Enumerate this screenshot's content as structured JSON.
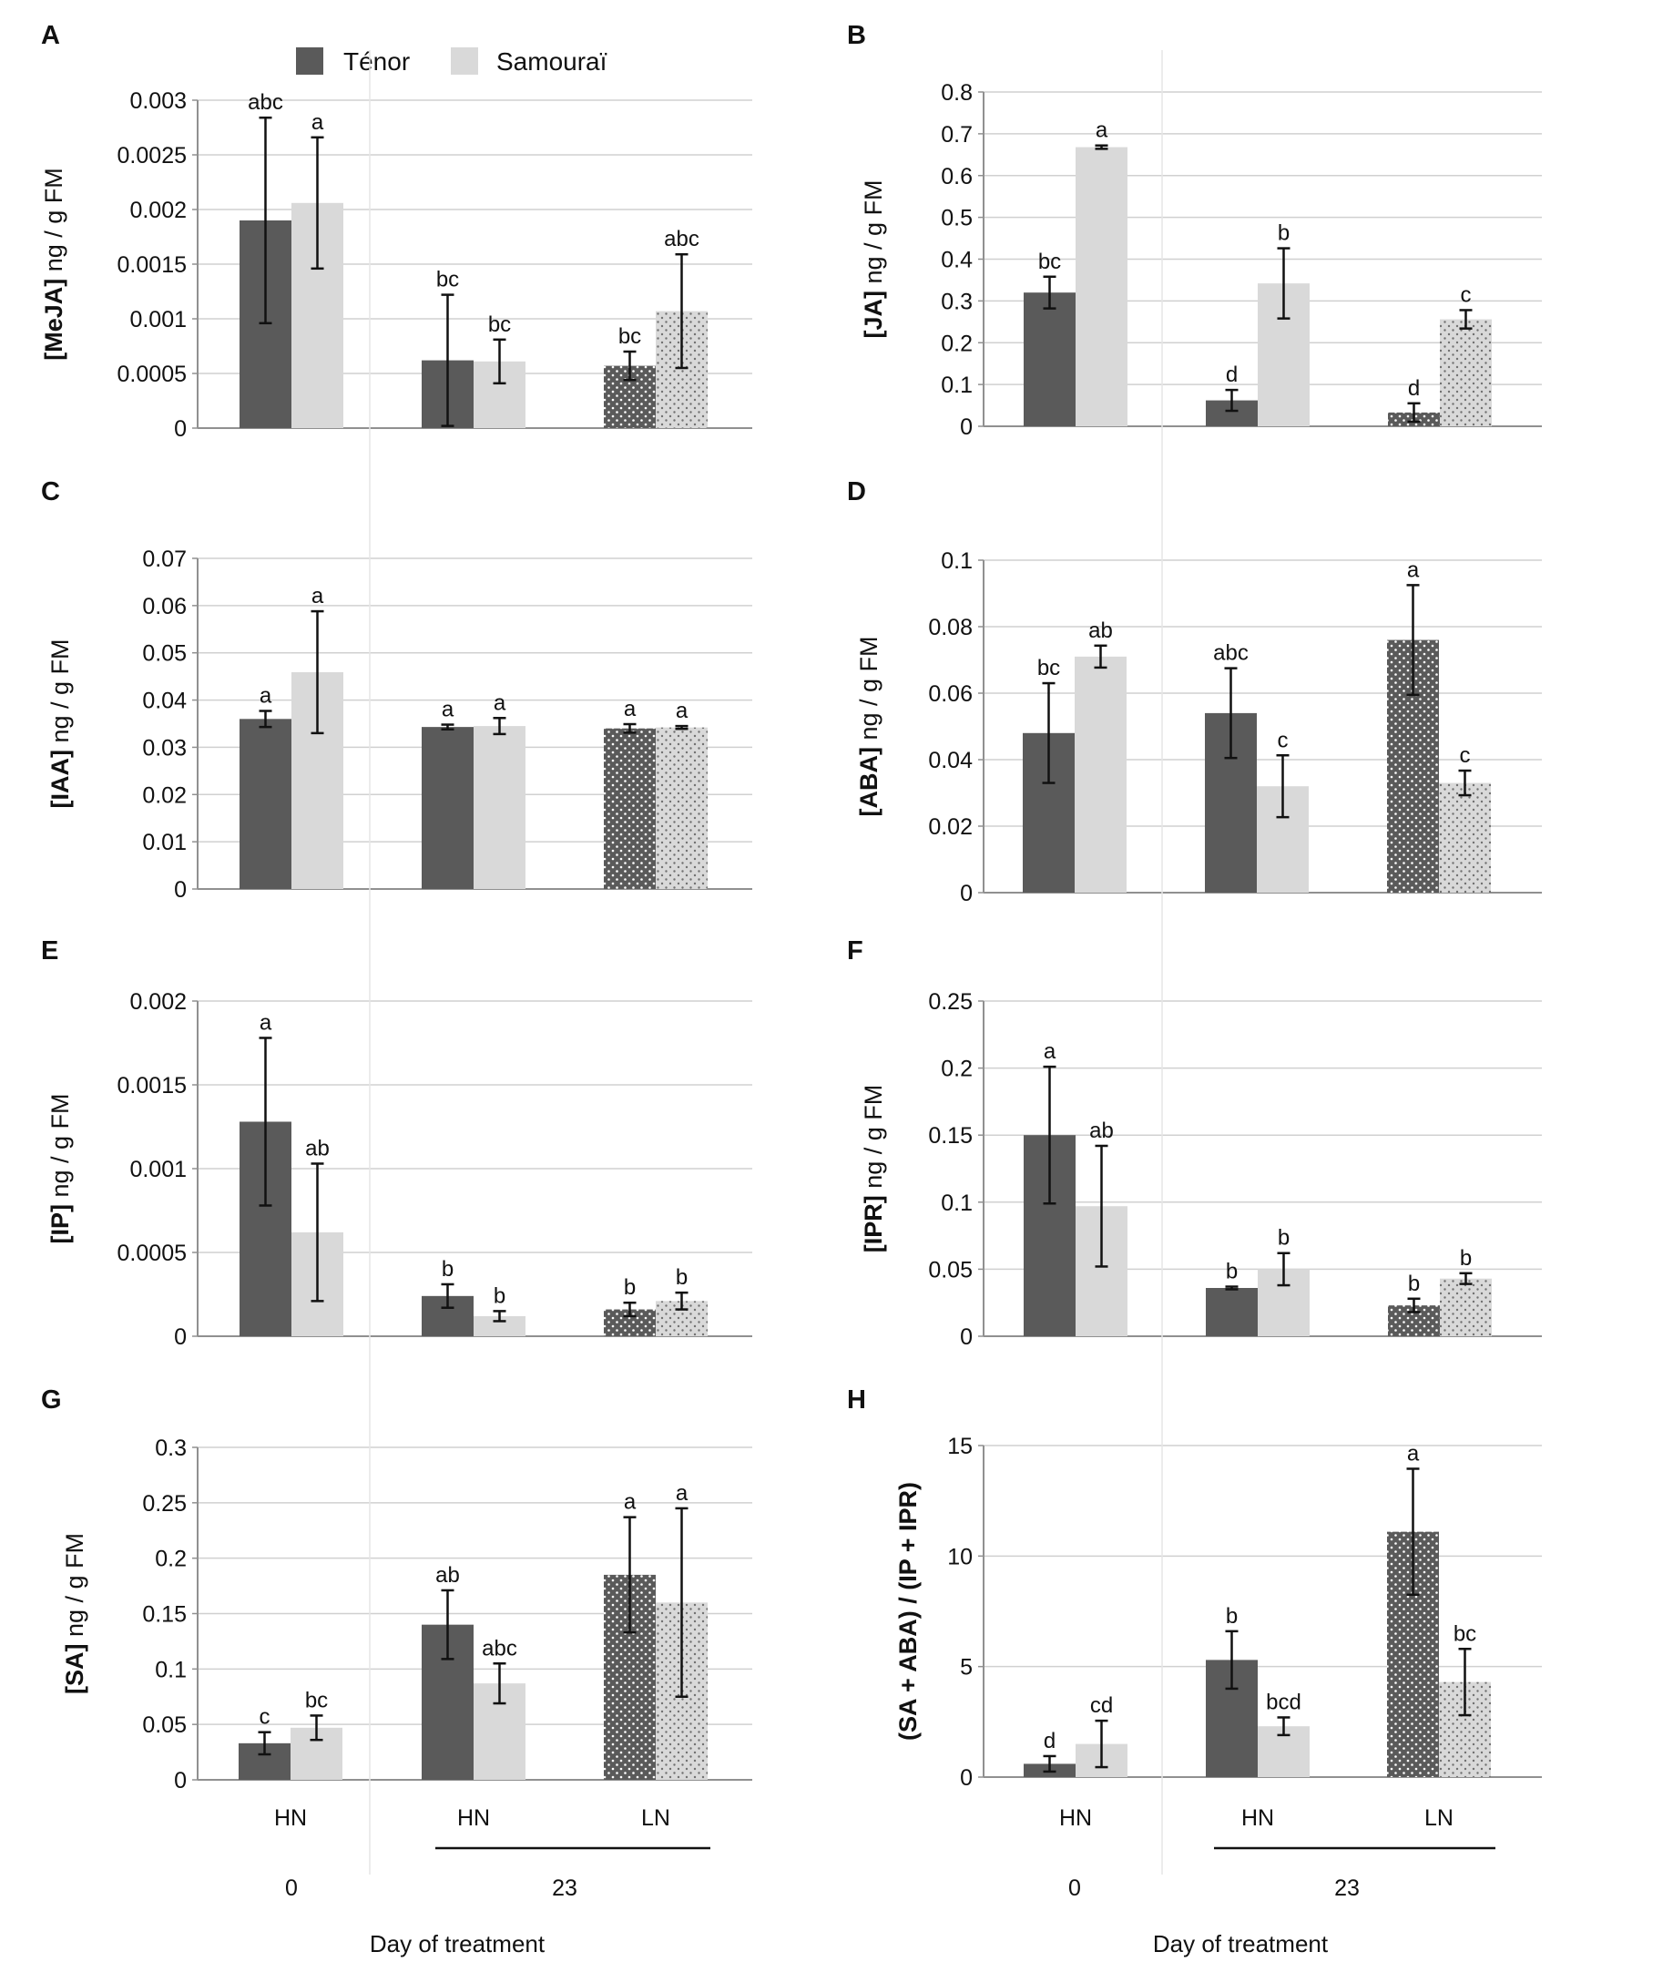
{
  "legend": {
    "items": [
      {
        "name": "Ténor",
        "color": "#5a5a5a"
      },
      {
        "name": "Samouraï",
        "color": "#d9d9d9"
      }
    ]
  },
  "axis_x": {
    "categories": [
      "HN",
      "HN",
      "LN"
    ],
    "days": [
      "0",
      "23"
    ],
    "title": "Day of treatment"
  },
  "colors": {
    "tenor": "#5a5a5a",
    "samourai": "#d9d9d9",
    "grid": "#d0d0d0",
    "axis": "#909090"
  },
  "chart_data": [
    {
      "panel": "A",
      "type": "bar",
      "ylabel": "[MeJA] ng / g FM",
      "ylim": [
        0,
        0.003
      ],
      "yticks": [
        "0",
        "0.0005",
        "0.001",
        "0.0015",
        "0.002",
        "0.0025",
        "0.003"
      ],
      "categories": [
        "0 HN",
        "23 HN",
        "23 LN"
      ],
      "series": [
        {
          "name": "Ténor",
          "values": [
            0.0019,
            0.00062,
            0.00057
          ],
          "errors": [
            0.00094,
            0.0006,
            0.00013
          ],
          "labels": [
            "abc",
            "bc",
            "bc"
          ]
        },
        {
          "name": "Samouraï",
          "values": [
            0.00206,
            0.00061,
            0.00107
          ],
          "errors": [
            0.0006,
            0.0002,
            0.00052
          ],
          "labels": [
            "a",
            "bc",
            "abc"
          ]
        }
      ]
    },
    {
      "panel": "B",
      "type": "bar",
      "ylabel": "[JA] ng / g FM",
      "ylim": [
        0,
        0.8
      ],
      "yticks": [
        "0",
        "0.1",
        "0.2",
        "0.3",
        "0.4",
        "0.5",
        "0.6",
        "0.7",
        "0.8"
      ],
      "categories": [
        "0 HN",
        "23 HN",
        "23 LN"
      ],
      "series": [
        {
          "name": "Ténor",
          "values": [
            0.32,
            0.062,
            0.033
          ],
          "errors": [
            0.038,
            0.025,
            0.022
          ],
          "labels": [
            "bc",
            "d",
            "d"
          ]
        },
        {
          "name": "Samouraï",
          "values": [
            0.668,
            0.342,
            0.256
          ],
          "errors": [
            0.004,
            0.084,
            0.022
          ],
          "labels": [
            "a",
            "b",
            "c"
          ]
        }
      ]
    },
    {
      "panel": "C",
      "type": "bar",
      "ylabel": "[IAA] ng / g FM",
      "ylim": [
        0,
        0.07
      ],
      "yticks": [
        "0",
        "0.01",
        "0.02",
        "0.03",
        "0.04",
        "0.05",
        "0.06",
        "0.07"
      ],
      "categories": [
        "0 HN",
        "23 HN",
        "23 LN"
      ],
      "series": [
        {
          "name": "Ténor",
          "values": [
            0.036,
            0.0343,
            0.034
          ],
          "errors": [
            0.0017,
            0.0005,
            0.0009
          ],
          "labels": [
            "a",
            "a",
            "a"
          ]
        },
        {
          "name": "Samouraï",
          "values": [
            0.0459,
            0.0345,
            0.0342
          ],
          "errors": [
            0.0129,
            0.0017,
            0.0003
          ],
          "labels": [
            "a",
            "a",
            "a"
          ]
        }
      ]
    },
    {
      "panel": "D",
      "type": "bar",
      "ylabel": "[ABA] ng / g FM",
      "ylim": [
        0,
        0.1
      ],
      "yticks": [
        "0",
        "0.02",
        "0.04",
        "0.06",
        "0.08",
        "0.1"
      ],
      "categories": [
        "0 HN",
        "23 HN",
        "23 LN"
      ],
      "series": [
        {
          "name": "Ténor",
          "values": [
            0.048,
            0.054,
            0.076
          ],
          "errors": [
            0.015,
            0.0135,
            0.0165
          ],
          "labels": [
            "bc",
            "abc",
            "a"
          ]
        },
        {
          "name": "Samouraï",
          "values": [
            0.071,
            0.032,
            0.033
          ],
          "errors": [
            0.0033,
            0.0093,
            0.0037
          ],
          "labels": [
            "ab",
            "c",
            "c"
          ]
        }
      ]
    },
    {
      "panel": "E",
      "type": "bar",
      "ylabel": "[IP] ng / g FM",
      "ylim": [
        0,
        0.002
      ],
      "yticks": [
        "0",
        "0.0005",
        "0.001",
        "0.0015",
        "0.002"
      ],
      "categories": [
        "0 HN",
        "23 HN",
        "23 LN"
      ],
      "series": [
        {
          "name": "Ténor",
          "values": [
            0.00128,
            0.00024,
            0.00016
          ],
          "errors": [
            0.0005,
            7e-05,
            4e-05
          ],
          "labels": [
            "a",
            "b",
            "b"
          ]
        },
        {
          "name": "Samouraï",
          "values": [
            0.00062,
            0.00012,
            0.00021
          ],
          "errors": [
            0.00041,
            3e-05,
            5e-05
          ],
          "labels": [
            "ab",
            "b",
            "b"
          ]
        }
      ]
    },
    {
      "panel": "F",
      "type": "bar",
      "ylabel": "[IPR] ng / g FM",
      "ylim": [
        0,
        0.25
      ],
      "yticks": [
        "0",
        "0.05",
        "0.1",
        "0.15",
        "0.2",
        "0.25"
      ],
      "categories": [
        "0 HN",
        "23 HN",
        "23 LN"
      ],
      "series": [
        {
          "name": "Ténor",
          "values": [
            0.15,
            0.036,
            0.023
          ],
          "errors": [
            0.051,
            0.001,
            0.005
          ],
          "labels": [
            "a",
            "b",
            "b"
          ]
        },
        {
          "name": "Samouraï",
          "values": [
            0.097,
            0.05,
            0.043
          ],
          "errors": [
            0.045,
            0.012,
            0.004
          ],
          "labels": [
            "ab",
            "b",
            "b"
          ]
        }
      ]
    },
    {
      "panel": "G",
      "type": "bar",
      "ylabel": "[SA] ng / g FM",
      "ylim": [
        0,
        0.3
      ],
      "yticks": [
        "0",
        "0.05",
        "0.1",
        "0.15",
        "0.2",
        "0.25",
        "0.3"
      ],
      "categories": [
        "0 HN",
        "23 HN",
        "23 LN"
      ],
      "series": [
        {
          "name": "Ténor",
          "values": [
            0.033,
            0.14,
            0.185
          ],
          "errors": [
            0.01,
            0.031,
            0.052
          ],
          "labels": [
            "c",
            "ab",
            "a"
          ]
        },
        {
          "name": "Samouraï",
          "values": [
            0.047,
            0.087,
            0.16
          ],
          "errors": [
            0.011,
            0.018,
            0.085
          ],
          "labels": [
            "bc",
            "abc",
            "a"
          ]
        }
      ]
    },
    {
      "panel": "H",
      "type": "bar",
      "ylabel": "(SA + ABA) / (IP + IPR)",
      "ylim": [
        0,
        15
      ],
      "yticks": [
        "0",
        "5",
        "10",
        "15"
      ],
      "categories": [
        "0 HN",
        "23 HN",
        "23 LN"
      ],
      "series": [
        {
          "name": "Ténor",
          "values": [
            0.6,
            5.3,
            11.1
          ],
          "errors": [
            0.35,
            1.3,
            2.85
          ],
          "labels": [
            "d",
            "b",
            "a"
          ]
        },
        {
          "name": "Samouraï",
          "values": [
            1.5,
            2.3,
            4.3
          ],
          "errors": [
            1.05,
            0.4,
            1.5
          ],
          "labels": [
            "cd",
            "bcd",
            "bc"
          ]
        }
      ]
    }
  ]
}
